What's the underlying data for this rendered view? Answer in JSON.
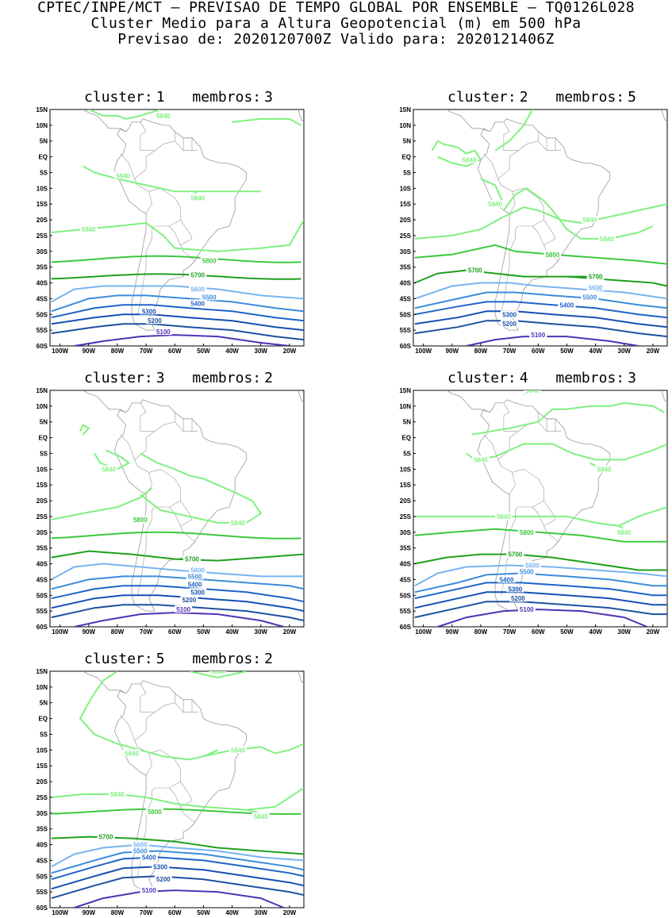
{
  "header": {
    "line1": "CPTEC/INPE/MCT – PREVISAO DE TEMPO GLOBAL POR ENSEMBLE – TQ0126L028",
    "line2": "Cluster Medio para a Altura Geopotencial (m) em 500 hPa",
    "line3": "Previsao de: 2020120700Z    Valido para: 2020121406Z"
  },
  "axes": {
    "lat_labels": [
      "15N",
      "10N",
      "5N",
      "EQ",
      "5S",
      "10S",
      "15S",
      "20S",
      "25S",
      "30S",
      "35S",
      "40S",
      "45S",
      "50S",
      "55S",
      "60S"
    ],
    "lon_labels": [
      "100W",
      "90W",
      "80W",
      "70W",
      "60W",
      "50W",
      "40W",
      "30W",
      "20W"
    ]
  },
  "contour_colors": {
    "5840": "#80f080",
    "5800": "#3cc83c",
    "5700": "#1ea01e",
    "5600": "#78b4f0",
    "5500": "#3c8cdc",
    "5400": "#1e64c8",
    "5300": "#1450b4",
    "5200": "#1e50a0",
    "5100": "#5032b4",
    "coast": "#999999"
  },
  "clusters": [
    {
      "label": "cluster:",
      "num": "1",
      "members_label": "membros:",
      "members": "3",
      "levels": [
        "5840",
        "5840",
        "5840",
        "5840",
        "5840",
        "5800",
        "5700",
        "5600",
        "5500",
        "5400",
        "5300",
        "5200",
        "5100"
      ]
    },
    {
      "label": "cluster:",
      "num": "2",
      "members_label": "membros:",
      "members": "5",
      "levels": [
        "5840",
        "5840",
        "5840",
        "5840",
        "5840",
        "5800",
        "5700",
        "5700",
        "5600",
        "5500",
        "5400",
        "5300",
        "5200",
        "5100"
      ]
    },
    {
      "label": "cluster:",
      "num": "3",
      "members_label": "membros:",
      "members": "2",
      "levels": [
        "5840",
        "5840",
        "5840",
        "5800",
        "5840",
        "5700",
        "5600",
        "5500",
        "5400",
        "5300",
        "5200",
        "5100"
      ]
    },
    {
      "label": "cluster:",
      "num": "4",
      "members_label": "membros:",
      "members": "3",
      "levels": [
        "5840",
        "5840",
        "5840",
        "5840",
        "5840",
        "5800",
        "5700",
        "5600",
        "5500",
        "5400",
        "5300",
        "5200",
        "5100"
      ]
    },
    {
      "label": "cluster:",
      "num": "5",
      "members_label": "membros:",
      "members": "2",
      "levels": [
        "5840",
        "5840",
        "5840",
        "5840",
        "5800",
        "5840",
        "5700",
        "5600",
        "5500",
        "5400",
        "5300",
        "5200",
        "5100"
      ]
    }
  ]
}
